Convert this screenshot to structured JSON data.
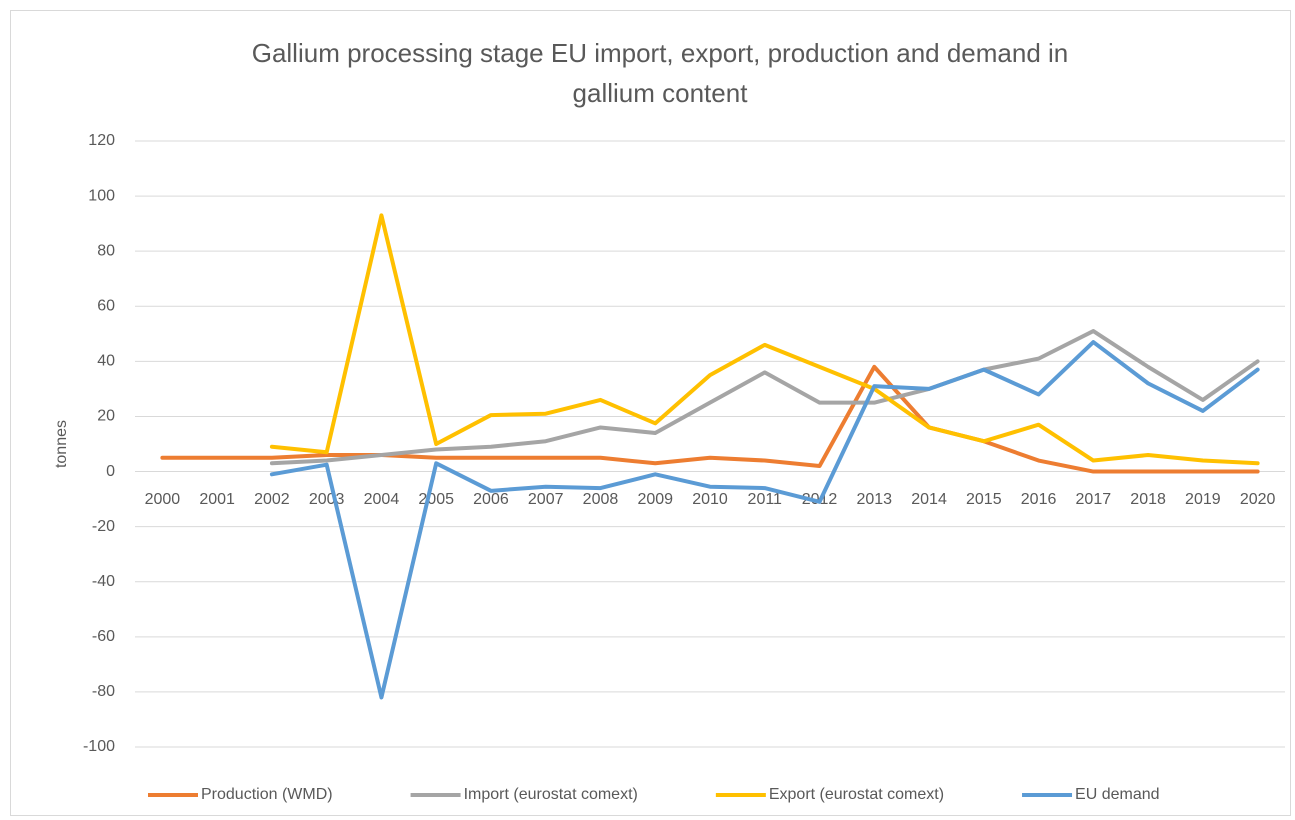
{
  "chart_data": {
    "type": "line",
    "title": "Gallium processing stage EU import, export, production and demand in",
    "subtitle": "gallium content",
    "ylabel": "tonnes",
    "categories": [
      "2000",
      "2001",
      "2002",
      "2003",
      "2004",
      "2005",
      "2006",
      "2007",
      "2008",
      "2009",
      "2010",
      "2011",
      "2012",
      "2013",
      "2014",
      "2015",
      "2016",
      "2017",
      "2018",
      "2019",
      "2020"
    ],
    "series": [
      {
        "name": "Production (WMD)",
        "color": "#ED7D31",
        "values": [
          5,
          5,
          5,
          6,
          6,
          5,
          5,
          5,
          5,
          3,
          5,
          4,
          2,
          38,
          16,
          11,
          4,
          0,
          0,
          0,
          0
        ]
      },
      {
        "name": "Import (eurostat comext)",
        "color": "#A5A5A5",
        "values": [
          null,
          null,
          3,
          4,
          6,
          8,
          9,
          11,
          16,
          14,
          25,
          36,
          25,
          25,
          30,
          37,
          41,
          51,
          38,
          26,
          40
        ]
      },
      {
        "name": "Export (eurostat comext)",
        "color": "#FFC000",
        "values": [
          null,
          null,
          9,
          7,
          93,
          10,
          20.5,
          21,
          26,
          17.5,
          35,
          46,
          38,
          30,
          16,
          11,
          17,
          4,
          6,
          4,
          3
        ]
      },
      {
        "name": "EU demand",
        "color": "#5B9BD5",
        "values": [
          null,
          null,
          -1,
          2.5,
          -82,
          3,
          -7,
          -5.5,
          -6,
          -1,
          -5.5,
          -6,
          -11,
          31,
          30,
          37,
          28,
          47,
          32,
          22,
          37
        ]
      }
    ],
    "ylim": [
      -100,
      120
    ],
    "yticks": [
      -100,
      -80,
      -60,
      -40,
      -20,
      0,
      20,
      40,
      60,
      80,
      100,
      120
    ],
    "grid": true,
    "legend": "bottom"
  }
}
